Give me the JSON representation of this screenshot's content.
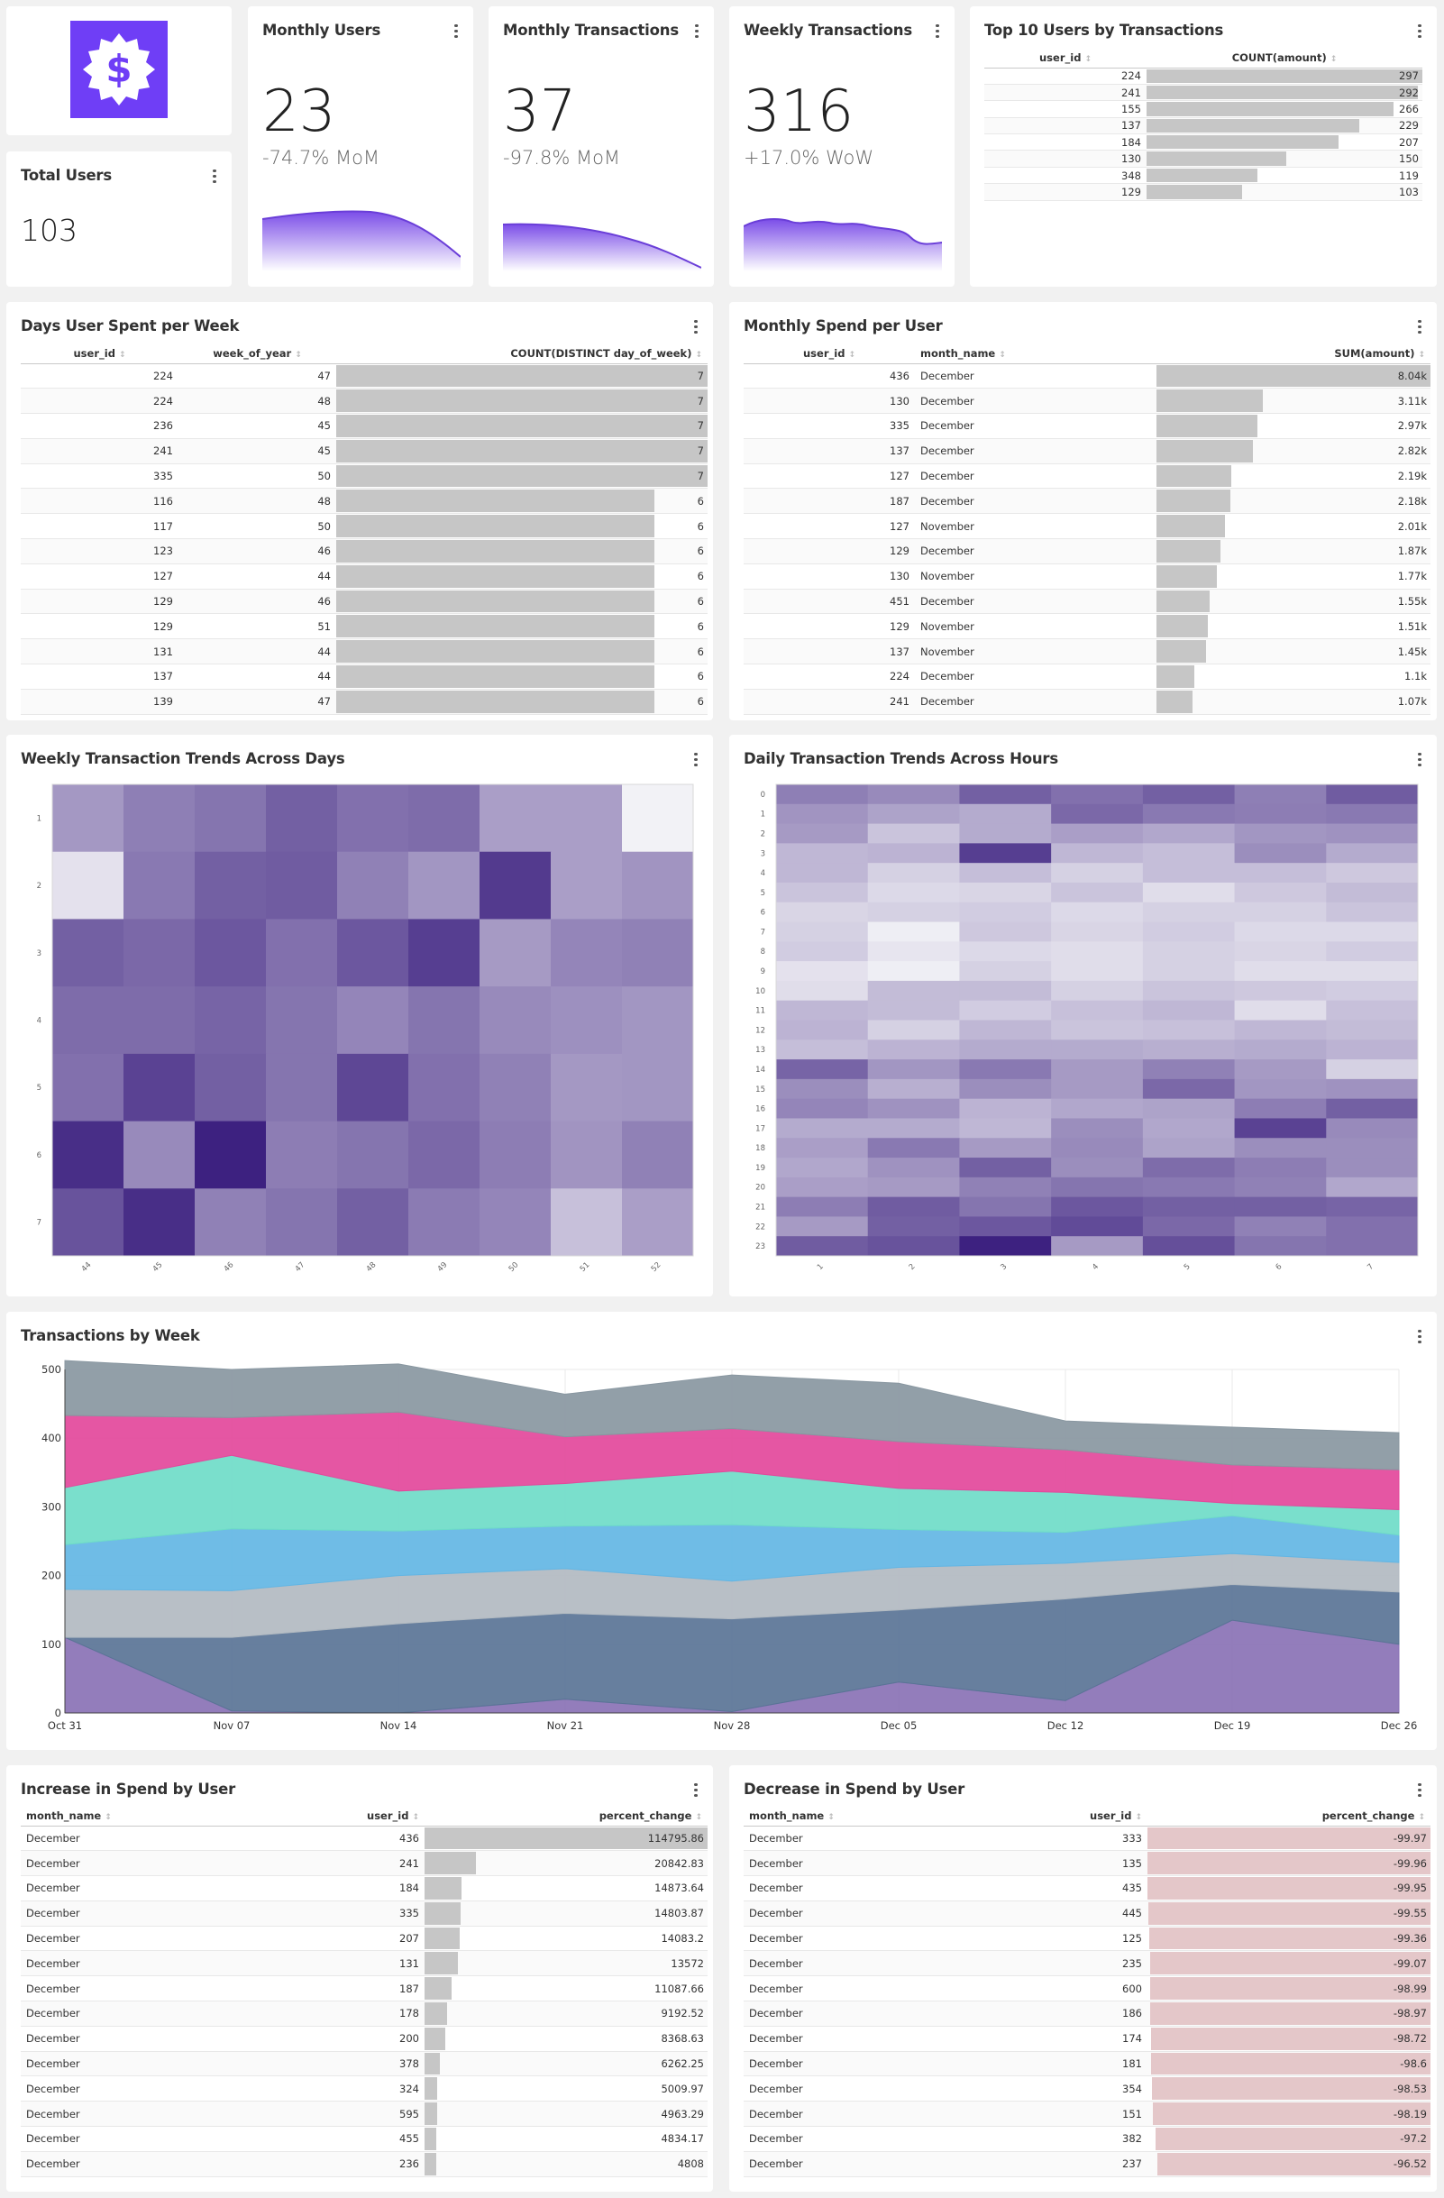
{
  "kpis": {
    "total_users": {
      "title": "Total Users",
      "value": "103"
    },
    "monthly_users": {
      "title": "Monthly Users",
      "value": "23",
      "change": "-74.7% MoM"
    },
    "monthly_transactions": {
      "title": "Monthly Transactions",
      "value": "37",
      "change": "-97.8% MoM"
    },
    "weekly_transactions": {
      "title": "Weekly Transactions",
      "value": "316",
      "change": "+17.0% WoW"
    }
  },
  "top10": {
    "title": "Top 10 Users by Transactions",
    "columns": [
      "user_id",
      "COUNT(amount)"
    ],
    "rows": [
      [
        "224",
        297
      ],
      [
        "241",
        292
      ],
      [
        "155",
        266
      ],
      [
        "137",
        229
      ],
      [
        "184",
        207
      ],
      [
        "130",
        150
      ],
      [
        "348",
        119
      ],
      [
        "129",
        103
      ]
    ]
  },
  "days_per_week": {
    "title": "Days User Spent per Week",
    "columns": [
      "user_id",
      "week_of_year",
      "COUNT(DISTINCT day_of_week)"
    ],
    "rows": [
      [
        "224",
        "47",
        7
      ],
      [
        "224",
        "48",
        7
      ],
      [
        "236",
        "45",
        7
      ],
      [
        "241",
        "45",
        7
      ],
      [
        "335",
        "50",
        7
      ],
      [
        "116",
        "48",
        6
      ],
      [
        "117",
        "50",
        6
      ],
      [
        "123",
        "46",
        6
      ],
      [
        "127",
        "44",
        6
      ],
      [
        "129",
        "46",
        6
      ],
      [
        "129",
        "51",
        6
      ],
      [
        "131",
        "44",
        6
      ],
      [
        "137",
        "44",
        6
      ],
      [
        "139",
        "47",
        6
      ]
    ]
  },
  "monthly_spend": {
    "title": "Monthly Spend per User",
    "columns": [
      "user_id",
      "month_name",
      "SUM(amount)"
    ],
    "rows": [
      [
        "436",
        "December",
        8040,
        "8.04k"
      ],
      [
        "130",
        "December",
        3110,
        "3.11k"
      ],
      [
        "335",
        "December",
        2970,
        "2.97k"
      ],
      [
        "137",
        "December",
        2820,
        "2.82k"
      ],
      [
        "127",
        "December",
        2190,
        "2.19k"
      ],
      [
        "187",
        "December",
        2180,
        "2.18k"
      ],
      [
        "127",
        "November",
        2010,
        "2.01k"
      ],
      [
        "129",
        "December",
        1870,
        "1.87k"
      ],
      [
        "130",
        "November",
        1770,
        "1.77k"
      ],
      [
        "451",
        "December",
        1550,
        "1.55k"
      ],
      [
        "129",
        "November",
        1510,
        "1.51k"
      ],
      [
        "137",
        "November",
        1450,
        "1.45k"
      ],
      [
        "224",
        "December",
        1100,
        "1.1k"
      ],
      [
        "241",
        "December",
        1070,
        "1.07k"
      ]
    ]
  },
  "weekly_heatmap": {
    "title": "Weekly Transaction Trends Across Days",
    "x_labels": [
      "44",
      "45",
      "46",
      "47",
      "48",
      "49",
      "50",
      "51",
      "52"
    ],
    "y_labels": [
      "1",
      "2",
      "3",
      "4",
      "5",
      "6",
      "7"
    ],
    "values": [
      [
        0.43,
        0.55,
        0.6,
        0.7,
        0.62,
        0.64,
        0.4,
        0.4,
        0.0
      ],
      [
        0.08,
        0.58,
        0.7,
        0.72,
        0.54,
        0.44,
        0.88,
        0.4,
        0.45
      ],
      [
        0.7,
        0.66,
        0.74,
        0.62,
        0.74,
        0.86,
        0.42,
        0.52,
        0.54
      ],
      [
        0.64,
        0.64,
        0.68,
        0.6,
        0.52,
        0.6,
        0.5,
        0.47,
        0.44
      ],
      [
        0.62,
        0.84,
        0.7,
        0.6,
        0.82,
        0.62,
        0.54,
        0.43,
        0.44
      ],
      [
        0.94,
        0.5,
        1.0,
        0.56,
        0.6,
        0.66,
        0.56,
        0.45,
        0.54
      ],
      [
        0.76,
        0.94,
        0.54,
        0.6,
        0.7,
        0.57,
        0.52,
        0.24,
        0.4
      ]
    ]
  },
  "daily_heatmap": {
    "title": "Daily Transaction Trends Across Hours",
    "x_labels": [
      "1",
      "2",
      "3",
      "4",
      "5",
      "6",
      "7"
    ],
    "y_labels": [
      "0",
      "1",
      "2",
      "3",
      "4",
      "5",
      "6",
      "7",
      "8",
      "9",
      "10",
      "11",
      "12",
      "13",
      "14",
      "15",
      "16",
      "17",
      "18",
      "19",
      "20",
      "21",
      "22",
      "23"
    ],
    "values": [
      [
        0.55,
        0.5,
        0.7,
        0.62,
        0.7,
        0.55,
        0.72
      ],
      [
        0.45,
        0.38,
        0.34,
        0.66,
        0.58,
        0.56,
        0.58
      ],
      [
        0.42,
        0.22,
        0.34,
        0.4,
        0.36,
        0.44,
        0.46
      ],
      [
        0.28,
        0.3,
        0.86,
        0.28,
        0.25,
        0.48,
        0.34
      ],
      [
        0.28,
        0.16,
        0.25,
        0.16,
        0.25,
        0.25,
        0.2
      ],
      [
        0.22,
        0.12,
        0.14,
        0.22,
        0.1,
        0.2,
        0.26
      ],
      [
        0.14,
        0.16,
        0.18,
        0.12,
        0.16,
        0.16,
        0.22
      ],
      [
        0.16,
        0.02,
        0.2,
        0.14,
        0.18,
        0.12,
        0.12
      ],
      [
        0.18,
        0.06,
        0.12,
        0.1,
        0.16,
        0.14,
        0.18
      ],
      [
        0.08,
        0.02,
        0.16,
        0.1,
        0.16,
        0.1,
        0.1
      ],
      [
        0.1,
        0.26,
        0.26,
        0.16,
        0.22,
        0.2,
        0.18
      ],
      [
        0.28,
        0.26,
        0.18,
        0.24,
        0.28,
        0.1,
        0.24
      ],
      [
        0.3,
        0.16,
        0.28,
        0.22,
        0.24,
        0.28,
        0.26
      ],
      [
        0.25,
        0.3,
        0.34,
        0.34,
        0.32,
        0.34,
        0.3
      ],
      [
        0.68,
        0.44,
        0.58,
        0.42,
        0.54,
        0.42,
        0.16
      ],
      [
        0.48,
        0.32,
        0.48,
        0.42,
        0.66,
        0.44,
        0.46
      ],
      [
        0.52,
        0.46,
        0.3,
        0.36,
        0.38,
        0.56,
        0.7
      ],
      [
        0.34,
        0.34,
        0.28,
        0.48,
        0.36,
        0.84,
        0.5
      ],
      [
        0.4,
        0.58,
        0.42,
        0.5,
        0.38,
        0.48,
        0.48
      ],
      [
        0.36,
        0.46,
        0.7,
        0.48,
        0.64,
        0.56,
        0.48
      ],
      [
        0.4,
        0.42,
        0.54,
        0.6,
        0.58,
        0.54,
        0.36
      ],
      [
        0.56,
        0.72,
        0.6,
        0.74,
        0.7,
        0.7,
        0.68
      ],
      [
        0.42,
        0.7,
        0.74,
        0.8,
        0.66,
        0.54,
        0.62
      ],
      [
        0.72,
        0.76,
        1.0,
        0.42,
        0.78,
        0.6,
        0.62
      ]
    ]
  },
  "transactions_by_week": {
    "title": "Transactions by Week"
  },
  "chart_data": [
    {
      "type": "area",
      "stacked": true,
      "title": "Transactions by Week",
      "x": [
        "Oct 31",
        "Nov 07",
        "Nov 14",
        "Nov 21",
        "Nov 28",
        "Dec 05",
        "Dec 12",
        "Dec 19",
        "Dec 26"
      ],
      "ylim": [
        0,
        500
      ],
      "yticks": [
        0,
        100,
        200,
        300,
        400,
        500
      ],
      "grid": true,
      "series": [
        {
          "color": "#8a72b5",
          "values": [
            110,
            3,
            0,
            20,
            2,
            45,
            18,
            135,
            100
          ]
        },
        {
          "color": "#5a7496",
          "values": [
            0,
            107,
            130,
            125,
            135,
            105,
            148,
            52,
            76
          ]
        },
        {
          "color": "#b2bac1",
          "values": [
            70,
            68,
            70,
            65,
            55,
            62,
            52,
            45,
            43
          ]
        },
        {
          "color": "#63b6e4",
          "values": [
            65,
            90,
            65,
            62,
            82,
            55,
            45,
            55,
            40
          ]
        },
        {
          "color": "#6fdcc8",
          "values": [
            83,
            107,
            58,
            62,
            78,
            60,
            58,
            18,
            37
          ]
        },
        {
          "color": "#e3489b",
          "values": [
            105,
            55,
            115,
            68,
            62,
            68,
            62,
            56,
            58
          ]
        },
        {
          "color": "#8997a1",
          "values": [
            80,
            70,
            70,
            62,
            78,
            85,
            42,
            55,
            54
          ]
        }
      ]
    }
  ],
  "increase": {
    "title": "Increase in Spend by User",
    "columns": [
      "month_name",
      "user_id",
      "percent_change"
    ],
    "rows": [
      [
        "December",
        "436",
        114795.86
      ],
      [
        "December",
        "241",
        20842.83
      ],
      [
        "December",
        "184",
        14873.64
      ],
      [
        "December",
        "335",
        14803.87
      ],
      [
        "December",
        "207",
        14083.2
      ],
      [
        "December",
        "131",
        13572
      ],
      [
        "December",
        "187",
        11087.66
      ],
      [
        "December",
        "178",
        9192.52
      ],
      [
        "December",
        "200",
        8368.63
      ],
      [
        "December",
        "378",
        6262.25
      ],
      [
        "December",
        "324",
        5009.97
      ],
      [
        "December",
        "595",
        4963.29
      ],
      [
        "December",
        "455",
        4834.17
      ],
      [
        "December",
        "236",
        4808
      ]
    ]
  },
  "decrease": {
    "title": "Decrease in Spend by User",
    "columns": [
      "month_name",
      "user_id",
      "percent_change"
    ],
    "rows": [
      [
        "December",
        "333",
        -99.97
      ],
      [
        "December",
        "135",
        -99.96
      ],
      [
        "December",
        "435",
        -99.95
      ],
      [
        "December",
        "445",
        -99.55
      ],
      [
        "December",
        "125",
        -99.36
      ],
      [
        "December",
        "235",
        -99.07
      ],
      [
        "December",
        "600",
        -98.99
      ],
      [
        "December",
        "186",
        -98.97
      ],
      [
        "December",
        "174",
        -98.72
      ],
      [
        "December",
        "181",
        -98.6
      ],
      [
        "December",
        "354",
        -98.53
      ],
      [
        "December",
        "151",
        -98.19
      ],
      [
        "December",
        "382",
        -97.2
      ],
      [
        "December",
        "237",
        -96.52
      ]
    ]
  },
  "icons": {
    "logo": "dollar-badge-icon",
    "menu": "more-vertical-icon",
    "sort": "sort-icon"
  },
  "colors": {
    "brand": "#6f3ef6",
    "sparkline": "#7b4de8",
    "heatmap_low": "#f2f2f6",
    "heatmap_high": "#3d2180"
  }
}
